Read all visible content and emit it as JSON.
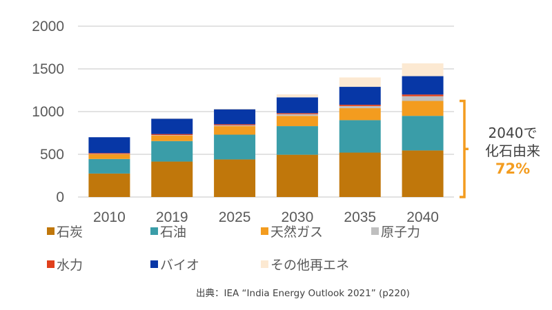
{
  "chart_data": {
    "type": "bar",
    "stacked": true,
    "title": "",
    "xlabel": "",
    "ylabel": "",
    "ylim": [
      0,
      2000
    ],
    "yticks": [
      0,
      500,
      1000,
      1500,
      2000
    ],
    "grid": true,
    "legend_position": "bottom",
    "categories": [
      "2010",
      "2019",
      "2025",
      "2030",
      "2035",
      "2040"
    ],
    "series": [
      {
        "name": "石炭",
        "color": "#C0770B",
        "values": [
          275,
          415,
          440,
          495,
          520,
          545
        ]
      },
      {
        "name": "石油",
        "color": "#3A9DA8",
        "values": [
          170,
          240,
          290,
          335,
          380,
          405
        ]
      },
      {
        "name": "天然ガス",
        "color": "#F39C1F",
        "values": [
          55,
          65,
          100,
          120,
          140,
          175
        ]
      },
      {
        "name": "原子力",
        "color": "#BFBFBF",
        "values": [
          5,
          5,
          10,
          20,
          25,
          55
        ]
      },
      {
        "name": "水力",
        "color": "#E0401C",
        "values": [
          10,
          12,
          12,
          12,
          15,
          20
        ]
      },
      {
        "name": "バイオ",
        "color": "#0737A6",
        "values": [
          185,
          180,
          175,
          185,
          210,
          215
        ]
      },
      {
        "name": "その他再エネ",
        "color": "#FCE9D2",
        "values": [
          0,
          5,
          5,
          35,
          110,
          150
        ]
      }
    ],
    "annotations": [
      {
        "text_line1": "2040で",
        "text_line2": "化石由来",
        "highlight": "72%",
        "highlight_color": "#F39C1F",
        "bracket_target": "2040 fossil (石炭+石油+天然ガス)"
      }
    ],
    "source": "出典：IEA “India Energy Outlook 2021” (p220)"
  }
}
